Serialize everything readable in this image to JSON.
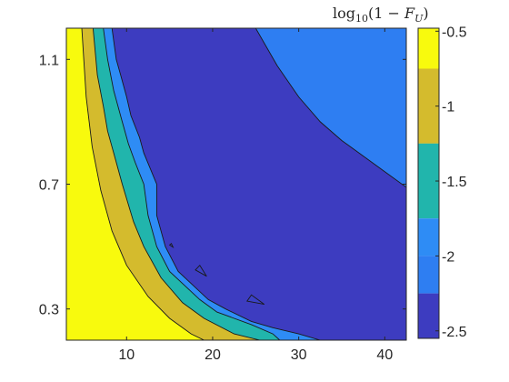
{
  "chart_data": {
    "type": "heatmap",
    "subtype": "filled-contour",
    "title": "",
    "xlabel": "",
    "ylabel": "",
    "xlim": [
      3,
      42.5
    ],
    "ylim": [
      0.2,
      1.2
    ],
    "xticks": [
      10,
      20,
      30,
      40
    ],
    "xtick_labels": [
      "10",
      "20",
      "30",
      "40"
    ],
    "yticks": [
      0.3,
      0.7,
      1.1
    ],
    "ytick_labels": [
      "0.3",
      "0.7",
      "1.1"
    ],
    "colorbar": {
      "label": "log10(1 - F_U)",
      "label_parts": {
        "func": "log",
        "sub": "10",
        "open": "(1 − ",
        "script": "F",
        "script_sub": "U",
        "close": ")"
      },
      "range": [
        -2.55,
        -0.48
      ],
      "ticks": [
        -0.5,
        -1,
        -1.5,
        -2,
        -2.5
      ],
      "tick_labels": [
        "-0.5",
        "-1",
        "-1.5",
        "-2",
        "-2.5"
      ]
    },
    "levels": [
      {
        "min": -0.75,
        "color": "#f8fa0d"
      },
      {
        "min": -1.25,
        "color": "#d4bb2d"
      },
      {
        "min": -1.75,
        "color": "#21b5ac"
      },
      {
        "min": -2.0,
        "color": "#2e8cf5"
      },
      {
        "min": -2.25,
        "color": "#2e7ef2"
      },
      {
        "min": -2.6,
        "color": "#3d3cc0"
      }
    ],
    "region_bands_from_plot_boundary": [
      {
        "value_band": "<= -0.75",
        "color": "#f8fa0d",
        "boundary": [
          [
            4.8,
            1.2
          ],
          [
            5.3,
            0.98
          ],
          [
            6.0,
            0.82
          ],
          [
            7.0,
            0.68
          ],
          [
            8.3,
            0.55
          ],
          [
            10.0,
            0.44
          ],
          [
            12.5,
            0.34
          ],
          [
            15.0,
            0.27
          ],
          [
            17.5,
            0.22
          ],
          [
            19.0,
            0.2
          ]
        ]
      },
      {
        "value_band": "-1.25 to -0.75",
        "color": "#d4bb2d",
        "boundary": [
          [
            6.1,
            1.2
          ],
          [
            6.6,
            1.05
          ],
          [
            7.3,
            0.95
          ],
          [
            7.8,
            0.87
          ],
          [
            8.5,
            0.8
          ],
          [
            9.5,
            0.7
          ],
          [
            10.8,
            0.58
          ],
          [
            12.0,
            0.5
          ],
          [
            14.0,
            0.4
          ],
          [
            16.5,
            0.32
          ],
          [
            19.0,
            0.27
          ],
          [
            22.5,
            0.22
          ],
          [
            25.5,
            0.2
          ]
        ]
      },
      {
        "value_band": "-1.75 to -1.25",
        "color": "#21b5ac",
        "boundary": [
          [
            7.3,
            1.2
          ],
          [
            7.8,
            1.1
          ],
          [
            8.5,
            1.0
          ],
          [
            9.0,
            0.95
          ],
          [
            9.5,
            0.9
          ],
          [
            10.2,
            0.83
          ],
          [
            11.0,
            0.77
          ],
          [
            12.0,
            0.7
          ],
          [
            12.5,
            0.6
          ],
          [
            13.5,
            0.5
          ],
          [
            15.0,
            0.42
          ],
          [
            18.5,
            0.33
          ],
          [
            20.5,
            0.29
          ],
          [
            24.5,
            0.25
          ],
          [
            27.0,
            0.22
          ],
          [
            27.8,
            0.2
          ]
        ]
      },
      {
        "value_band": "-2 to -1.75",
        "color": "#2e8cf5",
        "boundary": [
          [
            8.3,
            1.2
          ],
          [
            8.8,
            1.1
          ],
          [
            9.3,
            1.05
          ],
          [
            10.0,
            0.98
          ],
          [
            10.5,
            0.92
          ],
          [
            11.5,
            0.85
          ],
          [
            12.0,
            0.8
          ],
          [
            12.6,
            0.76
          ],
          [
            13.5,
            0.7
          ],
          [
            13.5,
            0.6
          ],
          [
            14.5,
            0.5
          ],
          [
            16.0,
            0.42
          ],
          [
            19.5,
            0.33
          ],
          [
            21.5,
            0.3
          ],
          [
            24.5,
            0.26
          ],
          [
            27.0,
            0.24
          ],
          [
            30.0,
            0.22
          ],
          [
            32.5,
            0.2
          ]
        ]
      },
      {
        "value_band": "-2.5 to -2 (upper right)",
        "color": "#2e7ef2",
        "boundary": [
          [
            25.0,
            1.2
          ],
          [
            27.5,
            1.08
          ],
          [
            30.0,
            0.98
          ],
          [
            32.5,
            0.9
          ],
          [
            35.0,
            0.84
          ],
          [
            37.5,
            0.79
          ],
          [
            40.0,
            0.74
          ],
          [
            42.5,
            0.69
          ]
        ]
      }
    ],
    "islands": [
      {
        "points": [
          [
            15.0,
            0.505
          ],
          [
            15.4,
            0.498
          ],
          [
            15.2,
            0.51
          ]
        ]
      },
      {
        "points": [
          [
            18.0,
            0.425
          ],
          [
            19.3,
            0.405
          ],
          [
            18.5,
            0.44
          ]
        ]
      },
      {
        "points": [
          [
            24.0,
            0.325
          ],
          [
            26.0,
            0.315
          ],
          [
            24.5,
            0.345
          ]
        ]
      }
    ],
    "grid": false
  }
}
